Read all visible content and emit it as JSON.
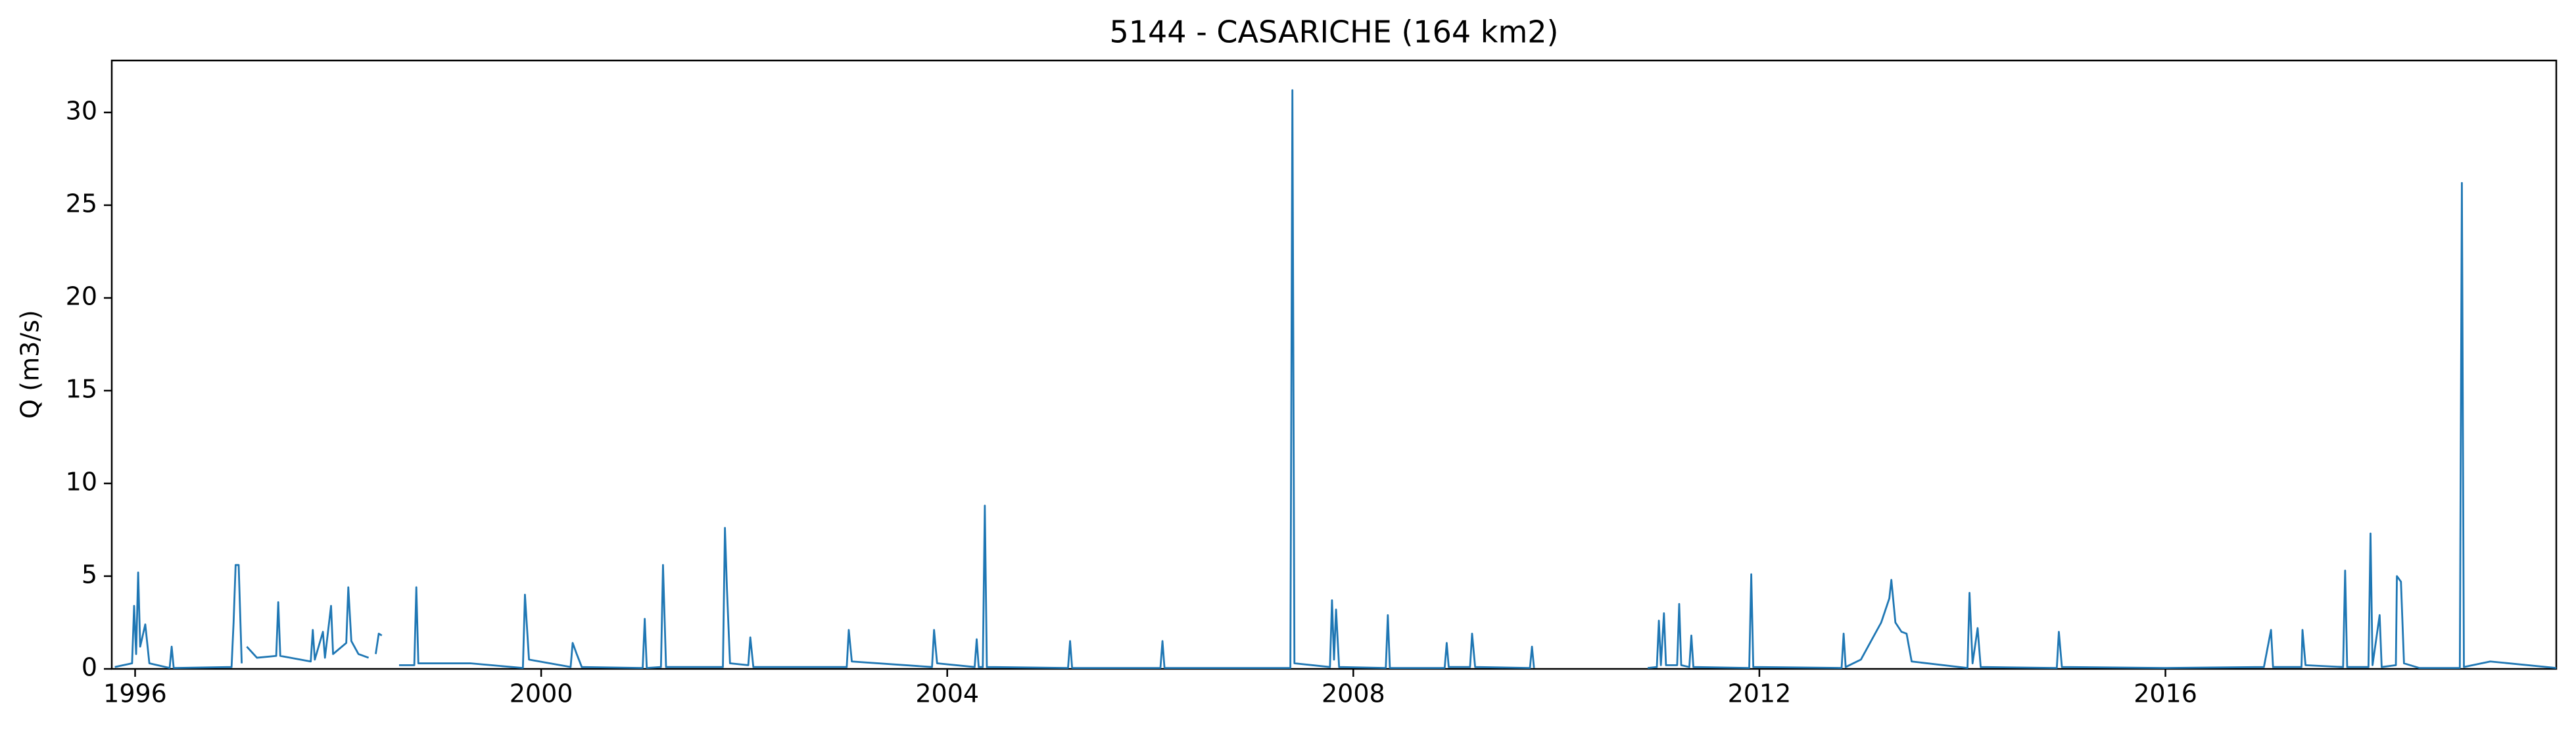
{
  "chart_data": {
    "type": "line",
    "title": "5144 - CASARICHE (164 km2)",
    "y_label": "Q (m3/s)",
    "x": [
      1995.8,
      1995.97,
      1995.99,
      1996.01,
      1996.03,
      1996.05,
      1996.1,
      1996.14,
      1996.34,
      1996.36,
      1996.38,
      1996.95,
      1996.97,
      1996.99,
      1997.02,
      1997.05,
      1997.08,
      1997.1,
      1997.15,
      1997.2,
      1997.39,
      1997.41,
      1997.43,
      1997.73,
      1997.75,
      1997.77,
      1997.85,
      1997.87,
      1997.93,
      1997.95,
      1998.08,
      1998.1,
      1998.13,
      1998.2,
      1998.3,
      1998.33,
      1998.37,
      1998.4,
      1998.43,
      1998.5,
      1998.6,
      1998.75,
      1998.77,
      1998.79,
      1999.3,
      1999.82,
      1999.84,
      1999.88,
      2000.29,
      2000.31,
      2000.35,
      2000.4,
      2001.0,
      2001.02,
      2001.04,
      2001.18,
      2001.2,
      2001.23,
      2001.79,
      2001.81,
      2001.83,
      2001.86,
      2002.04,
      2002.06,
      2002.09,
      2003.01,
      2003.03,
      2003.06,
      2003.85,
      2003.87,
      2003.9,
      2004.27,
      2004.29,
      2004.31,
      2004.35,
      2004.37,
      2004.39,
      2005.19,
      2005.21,
      2005.23,
      2006.1,
      2006.12,
      2006.14,
      2007.38,
      2007.4,
      2007.42,
      2007.77,
      2007.79,
      2007.81,
      2007.83,
      2007.86,
      2008.32,
      2008.34,
      2008.36,
      2008.9,
      2008.92,
      2008.94,
      2009.15,
      2009.17,
      2009.2,
      2009.74,
      2009.76,
      2009.78,
      2010.0,
      2010.9,
      2010.99,
      2011.01,
      2011.03,
      2011.06,
      2011.08,
      2011.19,
      2011.21,
      2011.23,
      2011.31,
      2011.33,
      2011.35,
      2011.9,
      2011.92,
      2011.94,
      2012.81,
      2012.83,
      2012.85,
      2013.0,
      2013.1,
      2013.2,
      2013.28,
      2013.3,
      2013.34,
      2013.4,
      2013.45,
      2013.5,
      2014.05,
      2014.07,
      2014.1,
      2014.15,
      2014.18,
      2014.93,
      2014.95,
      2014.98,
      2016.0,
      2016.97,
      2017.04,
      2017.06,
      2017.34,
      2017.35,
      2017.38,
      2017.75,
      2017.77,
      2017.79,
      2018.0,
      2018.02,
      2018.04,
      2018.11,
      2018.13,
      2018.27,
      2018.28,
      2018.32,
      2018.35,
      2018.5,
      2018.9,
      2018.92,
      2018.94,
      2019.2,
      2019.85
    ],
    "series": [
      {
        "color": "#1f77b4",
        "values": [
          0.1,
          0.3,
          3.4,
          0.8,
          5.2,
          1.2,
          2.4,
          0.3,
          0.05,
          1.2,
          0.05,
          0.1,
          2.5,
          5.6,
          5.6,
          0.3,
          null,
          1.2,
          0.9,
          0.6,
          0.7,
          3.6,
          0.7,
          0.4,
          2.1,
          0.5,
          2.0,
          0.6,
          3.4,
          0.8,
          1.4,
          4.4,
          1.5,
          0.8,
          0.6,
          null,
          0.8,
          1.9,
          1.8,
          null,
          0.2,
          0.2,
          4.4,
          0.3,
          0.3,
          0.05,
          4.0,
          0.5,
          0.1,
          1.4,
          0.8,
          0.1,
          0.05,
          2.7,
          0.05,
          0.1,
          5.6,
          0.1,
          0.1,
          7.6,
          4.3,
          0.3,
          0.2,
          1.7,
          0.1,
          0.1,
          2.1,
          0.4,
          0.1,
          2.1,
          0.3,
          0.1,
          1.6,
          0.1,
          0.1,
          8.8,
          0.1,
          0.05,
          1.5,
          0.05,
          0.05,
          1.5,
          0.05,
          0.05,
          31.2,
          0.3,
          0.1,
          3.7,
          0.5,
          3.2,
          0.1,
          0.05,
          2.9,
          0.05,
          0.05,
          1.4,
          0.1,
          0.1,
          1.9,
          0.1,
          0.05,
          1.2,
          0.05,
          null,
          0.05,
          0.1,
          2.6,
          0.2,
          3.0,
          0.2,
          0.2,
          3.5,
          0.2,
          0.1,
          1.8,
          0.1,
          0.05,
          5.1,
          0.1,
          0.05,
          1.9,
          0.1,
          0.5,
          1.5,
          2.5,
          3.8,
          4.8,
          2.5,
          2.0,
          1.9,
          0.4,
          0.05,
          4.1,
          0.3,
          2.2,
          0.1,
          0.05,
          2.0,
          0.1,
          0.05,
          0.1,
          2.1,
          0.1,
          0.1,
          2.1,
          0.2,
          0.1,
          5.3,
          0.1,
          0.1,
          7.3,
          0.2,
          2.9,
          0.1,
          0.2,
          5.0,
          4.7,
          0.3,
          0.05,
          0.05,
          26.2,
          0.1,
          0.4,
          0.05
        ]
      }
    ],
    "xlim": [
      1995.77,
      2019.85
    ],
    "ylim": [
      0,
      32.8
    ],
    "xticks": [
      1996,
      2000,
      2004,
      2008,
      2012,
      2016
    ],
    "yticks": [
      0,
      5,
      10,
      15,
      20,
      25,
      30
    ]
  }
}
